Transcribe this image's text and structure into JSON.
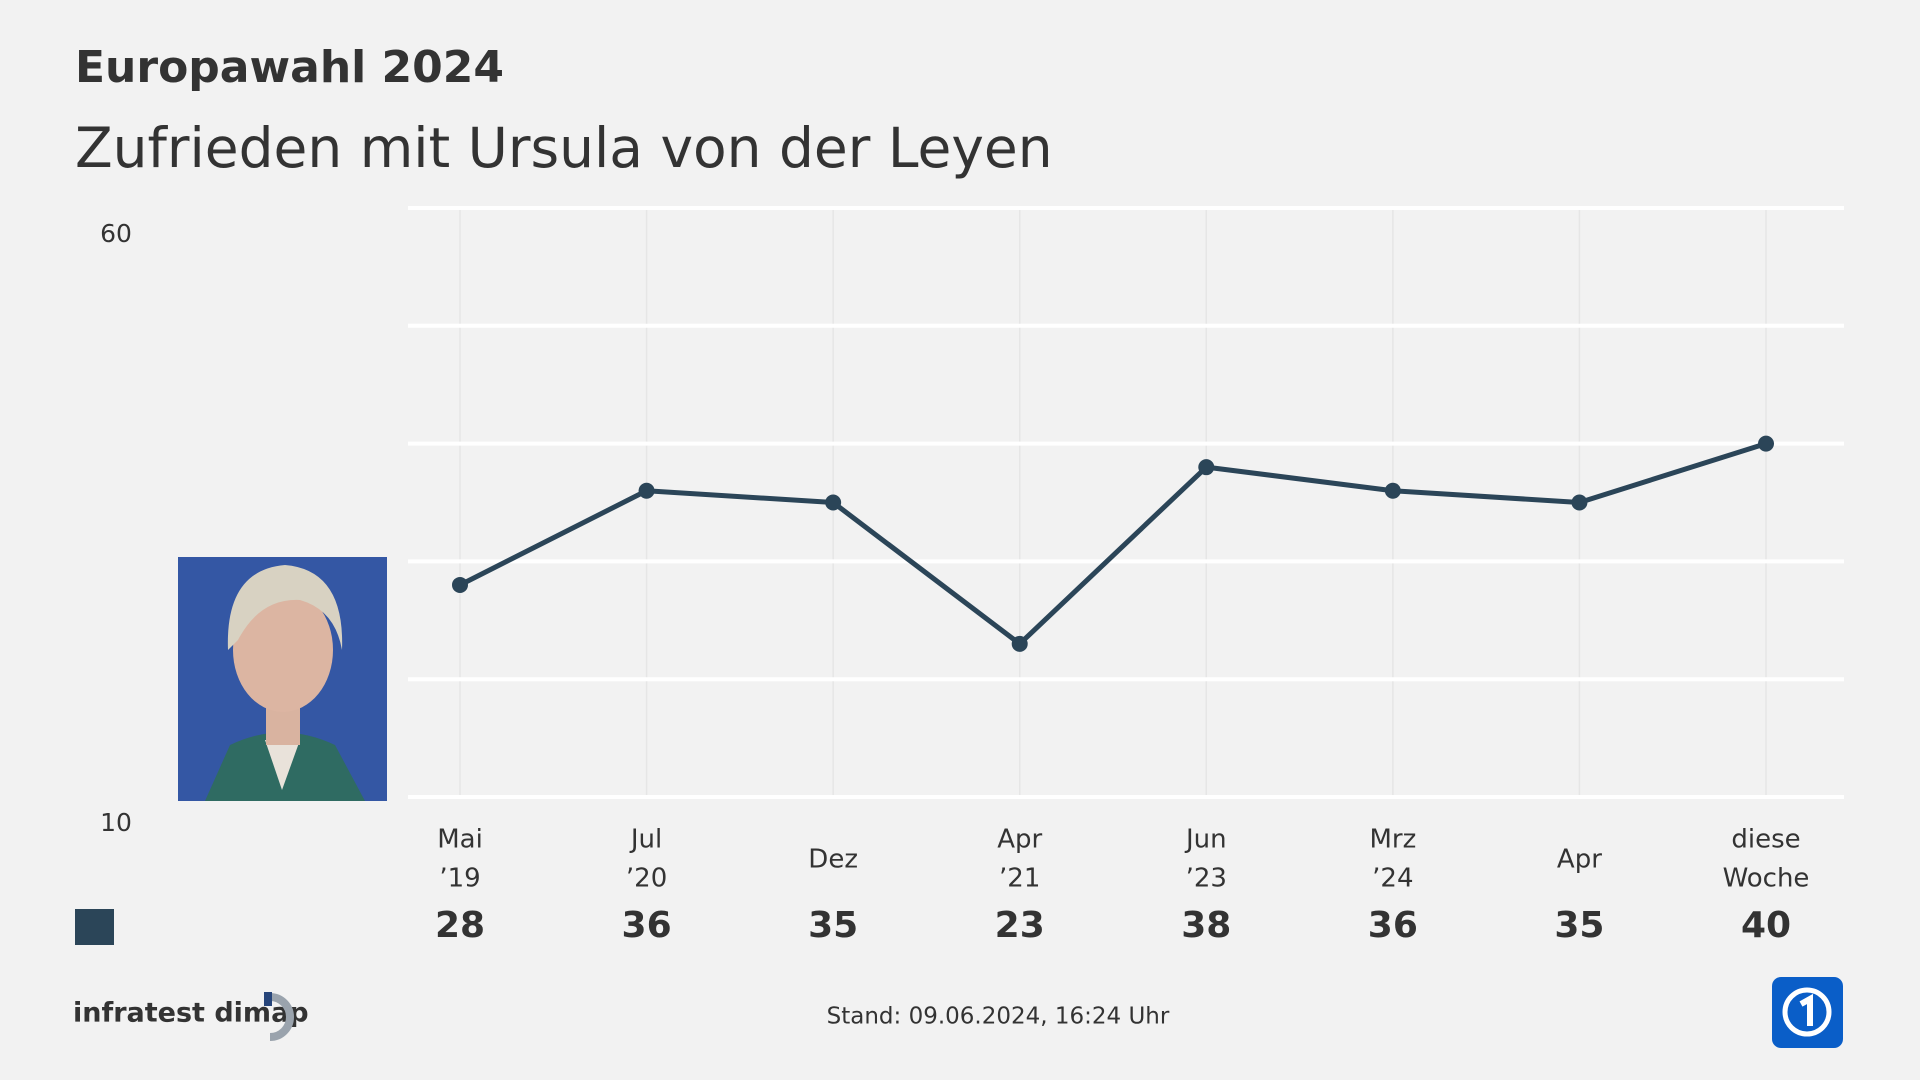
{
  "chart_data": {
    "type": "line",
    "title": "Europawahl 2024",
    "subtitle": "Zufrieden mit Ursula von der Leyen",
    "categories": [
      [
        "Mai",
        "’19"
      ],
      [
        "Jul",
        "’20"
      ],
      [
        "Dez"
      ],
      [
        "Apr",
        "’21"
      ],
      [
        "Jun",
        "’23"
      ],
      [
        "Mrz",
        "’24"
      ],
      [
        "Apr"
      ],
      [
        "diese",
        "Woche"
      ]
    ],
    "series": [
      {
        "color": "#2b4558",
        "values": [
          28,
          36,
          35,
          23,
          38,
          36,
          35,
          40
        ]
      }
    ],
    "ylim": [
      10,
      60
    ],
    "yticks": [
      10,
      60
    ],
    "ygrid": [
      10,
      20,
      30,
      40,
      50,
      60
    ],
    "xgrid": true,
    "source": "infratest dimap",
    "note": "Stand:  09.06.2024, 16:24 Uhr"
  }
}
